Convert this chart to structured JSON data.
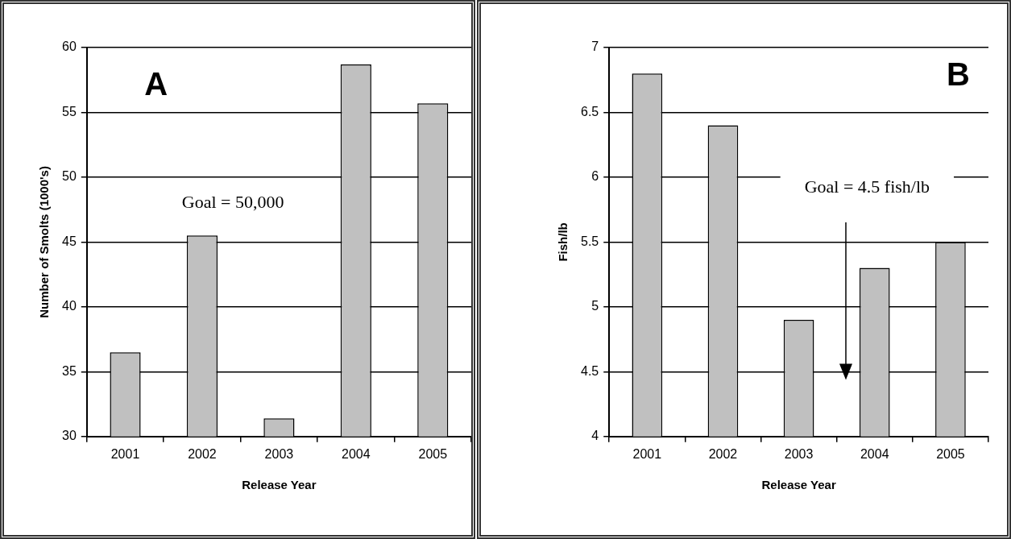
{
  "chart_data": [
    {
      "type": "bar",
      "categories": [
        "2001",
        "2002",
        "2003",
        "2004",
        "2005"
      ],
      "values": [
        36.5,
        45.5,
        31.4,
        58.7,
        55.7
      ],
      "color": "#c0c0c0",
      "xlabel": "Release Year",
      "ylabel": "Number of Smolts (1000's)",
      "ylim": [
        30,
        60
      ],
      "yticks": [
        30,
        35,
        40,
        45,
        50,
        55,
        60
      ],
      "grid": "y",
      "annotations": [
        "A",
        "Goal = 50,000"
      ]
    },
    {
      "type": "bar",
      "categories": [
        "2001",
        "2002",
        "2003",
        "2004",
        "2005"
      ],
      "values": [
        6.8,
        6.4,
        4.9,
        5.3,
        5.5
      ],
      "color": "#c0c0c0",
      "xlabel": "Release Year",
      "ylabel": "Fish/lb",
      "ylim": [
        4,
        7
      ],
      "yticks": [
        4,
        4.5,
        5,
        5.5,
        6,
        6.5,
        7
      ],
      "grid": "y",
      "annotations": [
        "B",
        "Goal = 4.5 fish/lb"
      ]
    }
  ]
}
